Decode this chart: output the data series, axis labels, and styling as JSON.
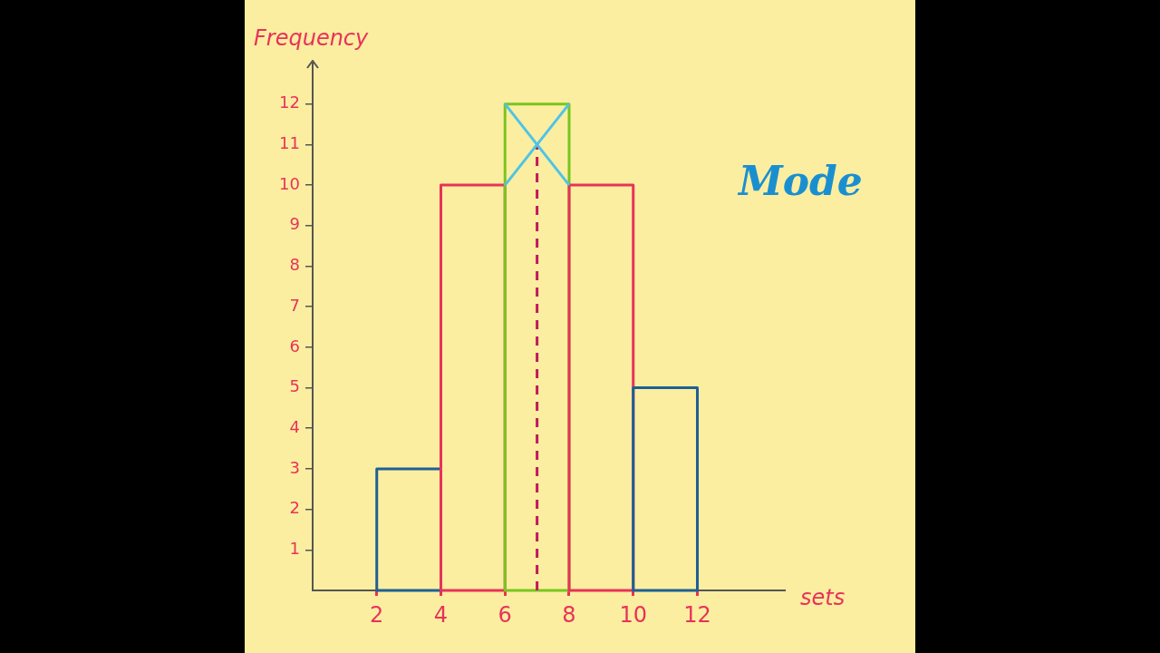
{
  "chart_data": {
    "type": "histogram",
    "xlabel": "sets",
    "ylabel": "Frequency",
    "annotations": [
      "Mode"
    ],
    "xlim": [
      0,
      14.7
    ],
    "ylim": [
      0,
      13
    ],
    "xticks": [
      2,
      4,
      6,
      8,
      10,
      12
    ],
    "yticks": [
      1,
      2,
      3,
      4,
      5,
      6,
      7,
      8,
      9,
      10,
      11,
      12
    ],
    "grid": false,
    "legend": false,
    "marker": "none",
    "series": [
      {
        "type": "histogram",
        "bins": [
          2,
          4,
          6,
          8,
          10,
          12
        ],
        "values": [
          3,
          10,
          12,
          10,
          5
        ],
        "colors": [
          "#1f5f96",
          "#e8325a",
          "#7ac520",
          "#e8325a",
          "#1f5f96"
        ]
      },
      {
        "type": "line",
        "color": "#4fc3e8",
        "x": [
          6,
          8
        ],
        "values": [
          12,
          10
        ],
        "line_style": "solid"
      },
      {
        "type": "line",
        "color": "#4fc3e8",
        "x": [
          6,
          8
        ],
        "values": [
          10,
          12
        ],
        "line_style": "solid"
      },
      {
        "type": "line",
        "color": "#c2185b",
        "x": [
          7,
          7
        ],
        "values": [
          0,
          11
        ],
        "line_style": "dashed"
      }
    ]
  }
}
